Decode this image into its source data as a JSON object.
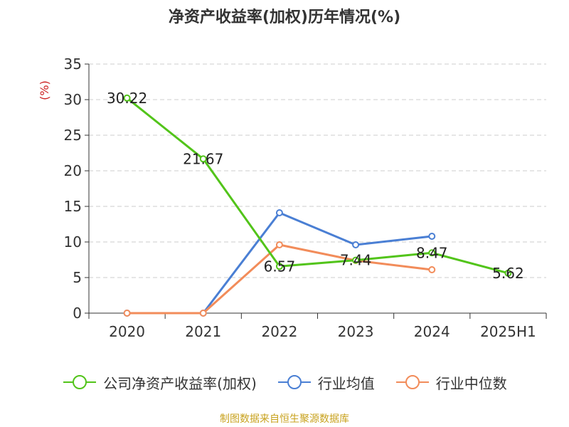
{
  "chart_data": {
    "type": "line",
    "title": "净资产收益率(加权)历年情况(%)",
    "ylabel": "(%)",
    "categories": [
      "2020",
      "2021",
      "2022",
      "2023",
      "2024",
      "2025H1"
    ],
    "ylim": [
      0,
      35
    ],
    "yticks": [
      0,
      5,
      10,
      15,
      20,
      25,
      30,
      35
    ],
    "grid": true,
    "legend_position": "bottom",
    "series": [
      {
        "name": "公司净资产收益率(加权)",
        "color": "#52c41a",
        "values": [
          30.22,
          21.67,
          6.57,
          7.44,
          8.47,
          5.62
        ],
        "labels": [
          "30.22",
          "21.67",
          "6.57",
          "7.44",
          "8.47",
          "5.62"
        ]
      },
      {
        "name": "行业均值",
        "color": "#4a7fd4",
        "values": [
          0,
          0,
          14.1,
          9.6,
          10.8,
          null
        ]
      },
      {
        "name": "行业中位数",
        "color": "#f28c5a",
        "values": [
          0,
          0,
          9.6,
          7.4,
          6.1,
          null
        ]
      }
    ]
  },
  "source": "制图数据来自恒生聚源数据库"
}
